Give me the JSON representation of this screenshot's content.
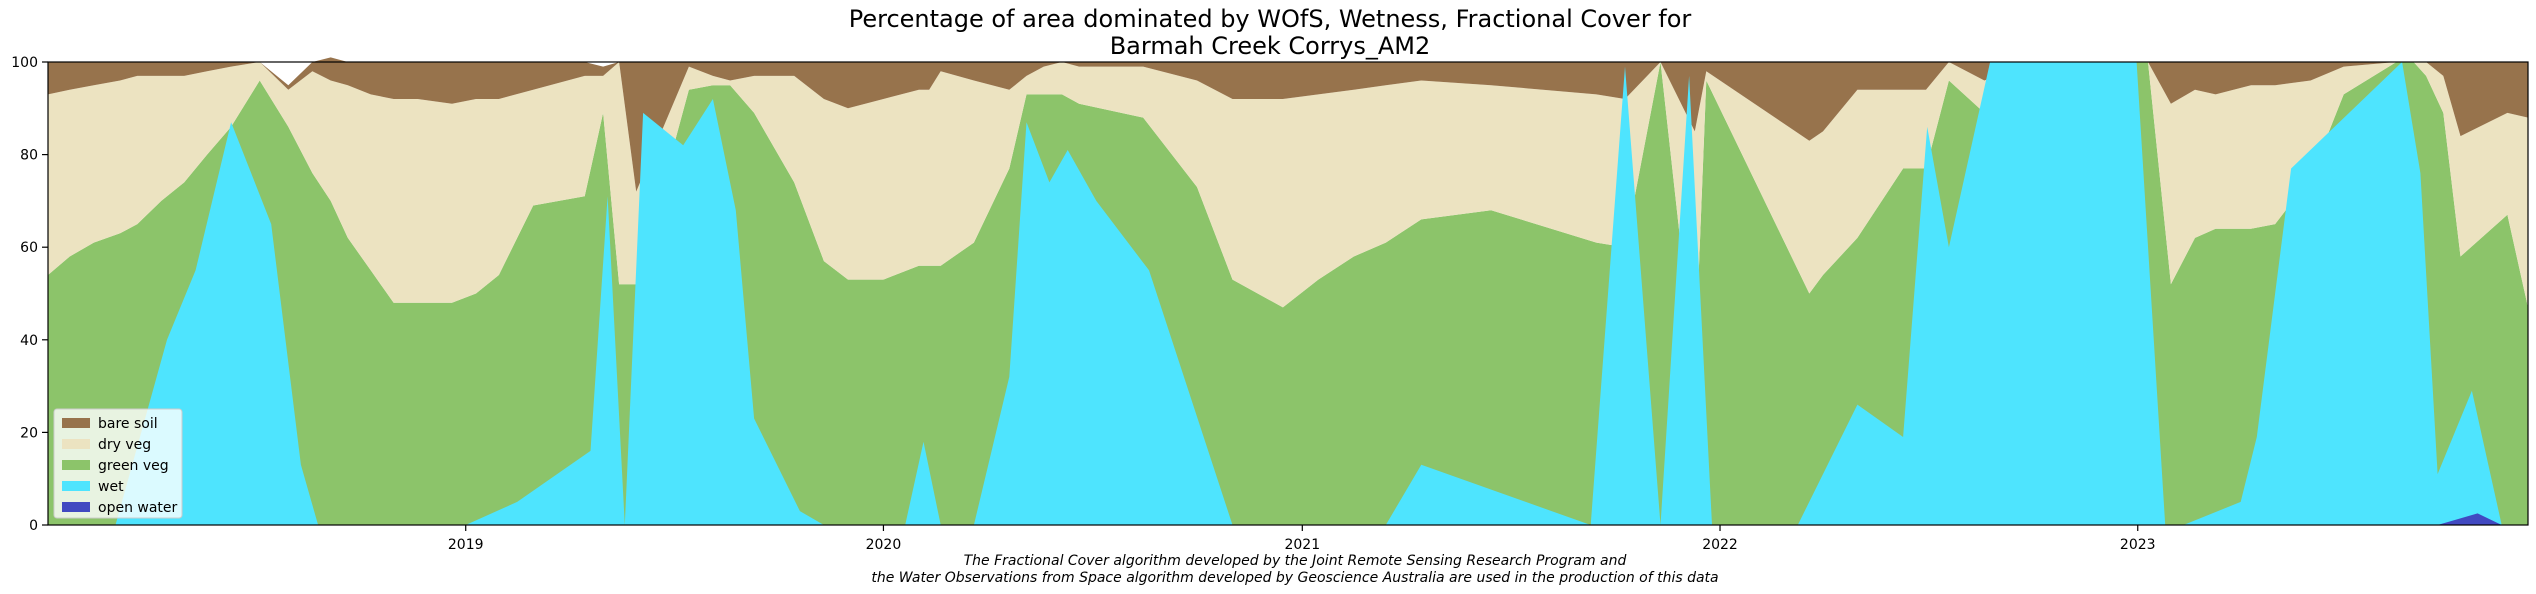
{
  "chart_data": {
    "type": "area",
    "stacked": true,
    "title_line1": "Percentage of area dominated by WOfS, Wetness, Fractional Cover for",
    "title_line2": "Barmah Creek Corrys_AM2",
    "xlabel": "",
    "ylabel": "",
    "xlim": [
      "2018-01-01",
      "2023-12-08"
    ],
    "ylim": [
      0,
      100
    ],
    "yticks": [
      0,
      20,
      40,
      60,
      80,
      100
    ],
    "xticks": [
      "2019",
      "2020",
      "2021",
      "2022",
      "2023"
    ],
    "legend_position": "lower-left",
    "caption_line1": "The Fractional Cover algorithm developed by the Joint Remote Sensing Research Program and",
    "caption_line2": "the Water Observations from Space algorithm developed by Geoscience Australia are used in the production of this data",
    "x": [
      "2018-01-01",
      "2018-01-20",
      "2018-02-10",
      "2018-03-05",
      "2018-03-20",
      "2018-04-10",
      "2018-04-30",
      "2018-05-20",
      "2018-06-10",
      "2018-07-05",
      "2018-07-30",
      "2018-08-20",
      "2018-09-05",
      "2018-09-20",
      "2018-10-10",
      "2018-10-30",
      "2018-11-20",
      "2018-12-20",
      "2019-01-10",
      "2019-01-30",
      "2019-03-01",
      "2019-04-15",
      "2019-05-01",
      "2019-05-15",
      "2019-05-30",
      "2019-07-15",
      "2019-08-05",
      "2019-08-20",
      "2019-09-10",
      "2019-10-15",
      "2019-11-10",
      "2019-12-01",
      "2020-01-01",
      "2020-02-01",
      "2020-02-10",
      "2020-02-20",
      "2020-03-20",
      "2020-04-20",
      "2020-05-05",
      "2020-05-20",
      "2020-06-05",
      "2020-06-20",
      "2020-08-15",
      "2020-10-01",
      "2020-11-01",
      "2020-12-15",
      "2021-01-15",
      "2021-02-15",
      "2021-03-15",
      "2021-04-15",
      "2021-06-15",
      "2021-09-15",
      "2021-10-10",
      "2021-11-10",
      "2021-12-10",
      "2021-12-20",
      "2022-03-20",
      "2022-04-01",
      "2022-05-01",
      "2022-06-10",
      "2022-06-30",
      "2022-07-20",
      "2022-08-20",
      "2022-09-30",
      "2022-10-30",
      "2022-11-30",
      "2022-12-31",
      "2023-01-10",
      "2023-01-30",
      "2023-02-20",
      "2023-03-10",
      "2023-04-10",
      "2023-05-01",
      "2023-06-01",
      "2023-06-30",
      "2023-08-15",
      "2023-08-30",
      "2023-09-10",
      "2023-09-25",
      "2023-10-10",
      "2023-11-20",
      "2023-12-08"
    ],
    "series": [
      {
        "name": "bare soil",
        "color": "#97734c",
        "values": [
          7,
          6,
          5,
          4,
          3,
          3,
          3,
          2,
          1,
          0,
          1,
          2,
          5,
          5,
          7,
          8,
          8,
          9,
          8,
          8,
          6,
          3,
          2,
          0,
          28,
          1,
          3,
          4,
          3,
          3,
          8,
          10,
          8,
          6,
          6,
          2,
          4,
          6,
          3,
          1,
          0,
          1,
          1,
          4,
          8,
          8,
          7,
          6,
          5,
          4,
          5,
          7,
          8,
          0,
          15,
          2,
          17,
          15,
          6,
          6,
          6,
          0,
          4,
          0,
          0,
          0,
          0,
          0,
          9,
          6,
          7,
          5,
          5,
          4,
          1,
          0,
          0,
          0,
          3,
          16,
          11,
          12
        ]
      },
      {
        "name": "dry veg",
        "color": "#ece3c1",
        "values": [
          39,
          36,
          34,
          33,
          32,
          27,
          23,
          18,
          13,
          4,
          8,
          22,
          26,
          33,
          38,
          44,
          44,
          43,
          42,
          38,
          25,
          26,
          8,
          48,
          20,
          5,
          2,
          1,
          8,
          23,
          35,
          37,
          39,
          38,
          38,
          42,
          35,
          17,
          4,
          6,
          7,
          8,
          11,
          23,
          39,
          45,
          40,
          36,
          34,
          30,
          27,
          32,
          32,
          0,
          52,
          2,
          33,
          31,
          32,
          17,
          17,
          4,
          7,
          0,
          0,
          0,
          0,
          0,
          39,
          32,
          29,
          31,
          30,
          21,
          6,
          0,
          0,
          3,
          8,
          26,
          22,
          41
        ]
      },
      {
        "name": "green veg",
        "color": "#8cc46a",
        "values": [
          54,
          58,
          61,
          63,
          65,
          70,
          74,
          80,
          86,
          96,
          86,
          76,
          70,
          62,
          55,
          48,
          48,
          48,
          50,
          54,
          69,
          71,
          89,
          52,
          52,
          94,
          95,
          95,
          89,
          74,
          57,
          53,
          53,
          56,
          56,
          56,
          61,
          77,
          93,
          93,
          93,
          91,
          88,
          73,
          53,
          47,
          53,
          58,
          61,
          66,
          68,
          61,
          60,
          100,
          33,
          96,
          50,
          54,
          62,
          77,
          77,
          96,
          89,
          100,
          100,
          100,
          100,
          100,
          52,
          62,
          64,
          64,
          65,
          75,
          93,
          100,
          100,
          97,
          89,
          58,
          67,
          47
        ]
      },
      {
        "name": "wet",
        "color": "#4ee4fe",
        "values": [
          0,
          0,
          0,
          0,
          0,
          0,
          0,
          0,
          0,
          0,
          0,
          0,
          0,
          0,
          0,
          0,
          0,
          0,
          0,
          0,
          0,
          0,
          0,
          0,
          0,
          0,
          0,
          0,
          0,
          0,
          0,
          0,
          0,
          0,
          0,
          0,
          0,
          0,
          0,
          0,
          0,
          0,
          0,
          0,
          0,
          0,
          0,
          0,
          0,
          0,
          0,
          0,
          0,
          0,
          0,
          0,
          0,
          0,
          0,
          0,
          0,
          0,
          0,
          0,
          0,
          0,
          0,
          0,
          0,
          0,
          0,
          0,
          0,
          0,
          0,
          0,
          0,
          0,
          0,
          0,
          0,
          0
        ]
      },
      {
        "name": "open water",
        "color": "#4149c1",
        "values": [
          0,
          0,
          0,
          0,
          0,
          0,
          0,
          0,
          0,
          0,
          0,
          0,
          0,
          0,
          0,
          0,
          0,
          0,
          0,
          0,
          0,
          0,
          0,
          0,
          0,
          0,
          0,
          0,
          0,
          0,
          0,
          0,
          0,
          0,
          0,
          0,
          0,
          0,
          0,
          0,
          0,
          0,
          0,
          0,
          0,
          0,
          0,
          0,
          0,
          0,
          0,
          0,
          0,
          0,
          0,
          0,
          0,
          0,
          0,
          0,
          0,
          0,
          0,
          0,
          0,
          0,
          0,
          0,
          0,
          0,
          0,
          0,
          0,
          0,
          0,
          0,
          0,
          0,
          0,
          0,
          0,
          0
        ]
      }
    ],
    "wet_overlay": {
      "x": [
        "2018-01-01",
        "2018-03-01",
        "2018-04-15",
        "2018-05-10",
        "2018-06-10",
        "2018-07-15",
        "2018-08-10",
        "2018-08-25",
        "2018-10-01",
        "2019-01-01",
        "2019-02-15",
        "2019-04-20",
        "2019-05-05",
        "2019-05-20",
        "2019-06-05",
        "2019-07-10",
        "2019-08-05",
        "2019-08-25",
        "2019-09-10",
        "2019-10-20",
        "2019-11-10",
        "2020-01-20",
        "2020-02-05",
        "2020-02-20",
        "2020-03-20",
        "2020-04-20",
        "2020-05-05",
        "2020-05-25",
        "2020-06-10",
        "2020-07-05",
        "2020-08-20",
        "2020-11-01",
        "2021-03-15",
        "2021-04-15",
        "2021-09-10",
        "2021-10-10",
        "2021-11-10",
        "2021-12-05",
        "2021-12-25",
        "2022-03-10",
        "2022-05-01",
        "2022-06-10",
        "2022-07-01",
        "2022-07-20",
        "2022-08-25",
        "2022-12-31",
        "2023-01-25",
        "2023-02-10",
        "2023-04-01",
        "2023-04-15",
        "2023-05-15",
        "2023-08-20",
        "2023-09-05",
        "2023-09-20",
        "2023-10-20",
        "2023-11-15"
      ],
      "values": [
        0,
        0,
        40,
        55,
        87,
        65,
        13,
        0,
        0,
        0,
        5,
        16,
        71,
        0,
        89,
        82,
        92,
        68,
        23,
        3,
        0,
        0,
        18,
        0,
        0,
        32,
        87,
        74,
        81,
        70,
        55,
        0,
        0,
        13,
        0,
        99,
        0,
        97,
        0,
        0,
        26,
        19,
        86,
        60,
        100,
        100,
        0,
        0,
        5,
        19,
        77,
        100,
        76,
        11,
        29,
        0
      ]
    },
    "open_water_overlay": {
      "x": [
        "2023-09-20",
        "2023-10-25",
        "2023-11-15"
      ],
      "values": [
        0,
        2.5,
        0
      ]
    }
  }
}
